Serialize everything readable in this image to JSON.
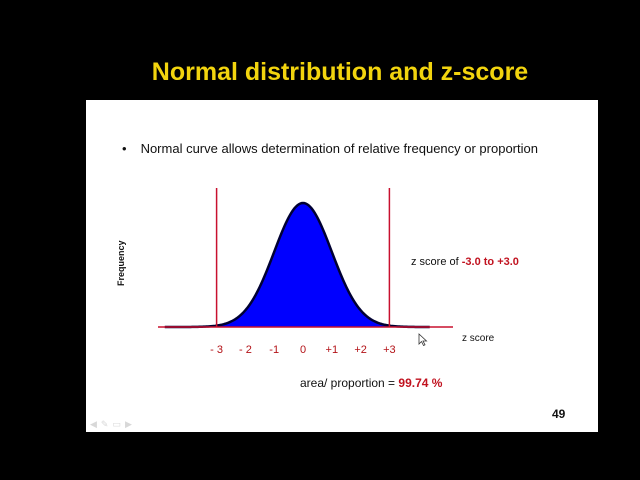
{
  "slide": {
    "title": "Normal distribution and z-score",
    "bullet_symbol": "•",
    "bullet_text": "Normal curve allows determination of relative frequency or proportion",
    "page_number": "49",
    "toolbar_icons": [
      "arrow-left-icon",
      "pen-icon",
      "slides-icon",
      "arrow-right-icon"
    ]
  },
  "chart_data": {
    "type": "area",
    "ylabel": "Frequency",
    "xlabel": "z score",
    "x_ticks": [
      "- 3",
      "- 2",
      "-1",
      "0",
      "+1",
      "+2",
      "+3"
    ],
    "x_tick_values": [
      -3,
      -2,
      -1,
      0,
      1,
      2,
      3
    ],
    "xlim": [
      -4.8,
      5.0
    ],
    "shaded_range": [
      -3,
      3
    ],
    "vertical_lines_at": [
      -3,
      3
    ],
    "annotation_prefix": "z score of ",
    "annotation_range": "-3.0 to +3.0",
    "area_prefix": "area/ proportion = ",
    "area_value": "99.74 %",
    "colors": {
      "fill": "#0000ff",
      "curve": "#000033",
      "axis": "#c8102e",
      "tick_text": "#b31217"
    }
  }
}
